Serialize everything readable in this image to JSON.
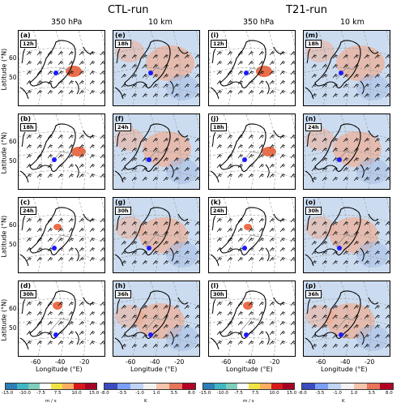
{
  "titles": {
    "ctl_run": "CTL-run",
    "t21_run": "T21-run"
  },
  "levels": [
    "350 hPa",
    "10 km",
    "350 hPa",
    "10 km"
  ],
  "panels": [
    [
      {
        "label": "(a)",
        "time": "12h"
      },
      {
        "label": "(e)",
        "time": "18h"
      },
      {
        "label": "(i)",
        "time": "12h"
      },
      {
        "label": "(m)",
        "time": "18h"
      }
    ],
    [
      {
        "label": "(b)",
        "time": "18h"
      },
      {
        "label": "(f)",
        "time": "24h"
      },
      {
        "label": "(j)",
        "time": "18h"
      },
      {
        "label": "(n)",
        "time": "24h"
      }
    ],
    [
      {
        "label": "(c)",
        "time": "24h"
      },
      {
        "label": "(g)",
        "time": "30h"
      },
      {
        "label": "(k)",
        "time": "24h"
      },
      {
        "label": "(o)",
        "time": "30h"
      }
    ],
    [
      {
        "label": "(d)",
        "time": "30h"
      },
      {
        "label": "(h)",
        "time": "36h"
      },
      {
        "label": "(l)",
        "time": "30h"
      },
      {
        "label": "(p)",
        "time": "36h"
      }
    ]
  ],
  "axes": {
    "ylabel": "Latitude (°N)",
    "xlabel": "Longitude (°E)",
    "yticks": [
      "60",
      "50"
    ],
    "xticks": [
      "-60",
      "-40",
      "-20"
    ]
  },
  "colorbars": [
    {
      "ticks": [
        "-15.0",
        "-10.0",
        "-7.5",
        "7.5",
        "10.0",
        "15.0"
      ],
      "unit": "m / s",
      "colors": [
        "#2c7fb8",
        "#41b6c4",
        "#7fcdbb",
        "#ffffff",
        "#f0e442",
        "#fdae61",
        "#d7191c",
        "#a50026"
      ]
    },
    {
      "ticks": [
        "-8.0",
        "-3.5",
        "-1.0",
        "1.0",
        "3.5",
        "8.0"
      ],
      "unit": "K",
      "colors": [
        "#3b4cc0",
        "#7b9ff9",
        "#c0d4f5",
        "#f2f2f2",
        "#f5c4ac",
        "#e7745b",
        "#b40426"
      ]
    },
    {
      "ticks": [
        "-15.0",
        "-10.0",
        "-7.5",
        "7.5",
        "10.0",
        "15.0"
      ],
      "unit": "m / s",
      "colors": [
        "#2c7fb8",
        "#41b6c4",
        "#7fcdbb",
        "#ffffff",
        "#f0e442",
        "#fdae61",
        "#d7191c",
        "#a50026"
      ]
    },
    {
      "ticks": [
        "-8.0",
        "-3.5",
        "-1.0",
        "1.0",
        "3.5",
        "8.0"
      ],
      "unit": "K",
      "colors": [
        "#3b4cc0",
        "#7b9ff9",
        "#c0d4f5",
        "#f2f2f2",
        "#f5c4ac",
        "#e7745b",
        "#b40426"
      ]
    }
  ],
  "colors": {
    "marker": "#1a1aff",
    "wind_fill": "#e8542a",
    "temp_warm": "#f4a582",
    "temp_cool": "#bcd4ee"
  }
}
